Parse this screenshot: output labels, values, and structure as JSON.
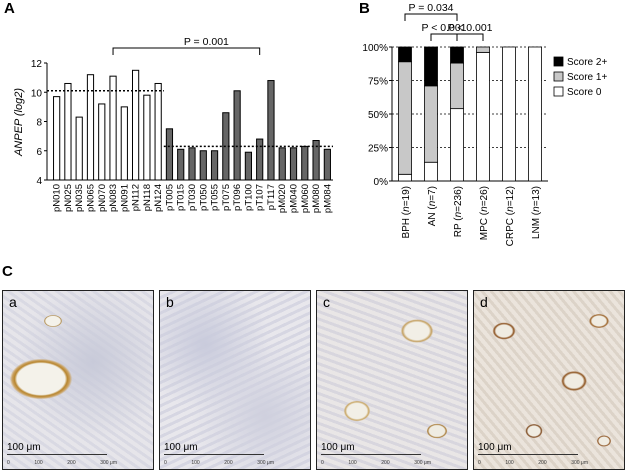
{
  "panels": {
    "a_label": "A",
    "b_label": "B",
    "c_label": "C"
  },
  "chart_data": [
    {
      "type": "bar",
      "ylabel": "ANPEP (log2)",
      "ylim": [
        4,
        12
      ],
      "yticks": [
        "4",
        "6",
        "8",
        "10",
        "12"
      ],
      "categories": [
        "pN010",
        "pN025",
        "pN035",
        "pN065",
        "pN070",
        "pN083",
        "pN091",
        "pN112",
        "pN118",
        "pN124",
        "pT005",
        "pT015",
        "pT030",
        "pT050",
        "pT055",
        "pT075",
        "pT096",
        "pT100",
        "pT107",
        "pT117",
        "pM020",
        "pM040",
        "pM060",
        "pM080",
        "pM084"
      ],
      "values": [
        9.7,
        10.6,
        8.3,
        11.2,
        9.2,
        11.1,
        9.0,
        11.5,
        9.8,
        10.6,
        7.5,
        6.1,
        6.2,
        6.0,
        6.0,
        8.6,
        10.1,
        5.9,
        6.8,
        10.8,
        6.2,
        6.2,
        6.3,
        6.7,
        6.1
      ],
      "groups": [
        {
          "range": [
            0,
            9
          ],
          "fill": "#ffffff",
          "mean": 10.1
        },
        {
          "range": [
            10,
            24
          ],
          "fill": "#666666",
          "mean": 6.3
        }
      ],
      "annotation": {
        "text": "P = 0.001",
        "from": 5,
        "to": 18
      },
      "grid": false
    },
    {
      "type": "bar",
      "stacked": true,
      "ylim": [
        0,
        100
      ],
      "yticks": [
        "0%",
        "25%",
        "50%",
        "75%",
        "100%"
      ],
      "categories": [
        "BPH (n=19)",
        "AN (n=7)",
        "RP (n=236)",
        "MPC (n=26)",
        "CRPC (n=12)",
        "LNM (n=13)"
      ],
      "series": [
        {
          "name": "Score 0",
          "color": "#ffffff",
          "values": [
            5,
            14,
            54,
            96,
            100,
            100
          ]
        },
        {
          "name": "Score 1+",
          "color": "#c8c8c8",
          "values": [
            84,
            57,
            34,
            4,
            0,
            0
          ]
        },
        {
          "name": "Score 2+",
          "color": "#000000",
          "values": [
            11,
            29,
            12,
            0,
            0,
            0
          ]
        }
      ],
      "annotations": [
        {
          "text": "P = 0.034",
          "from": 0,
          "to": 2,
          "level": 2
        },
        {
          "text": "P < 0.001",
          "from": 1,
          "to": 2,
          "level": 1
        },
        {
          "text": "P < 0.001",
          "from": 2,
          "to": 3,
          "level": 1
        }
      ],
      "legend_position": "right",
      "grid": true
    }
  ],
  "micrographs": [
    {
      "label": "a",
      "scale": "100 μm",
      "ticks": [
        "0",
        "100",
        "200",
        "300 μm"
      ]
    },
    {
      "label": "b",
      "scale": "100 μm",
      "ticks": [
        "0",
        "100",
        "200",
        "300 μm"
      ]
    },
    {
      "label": "c",
      "scale": "100 μm",
      "ticks": [
        "0",
        "100",
        "200",
        "300 μm"
      ]
    },
    {
      "label": "d",
      "scale": "100 μm",
      "ticks": [
        "0",
        "100",
        "200",
        "300 μm"
      ]
    }
  ]
}
